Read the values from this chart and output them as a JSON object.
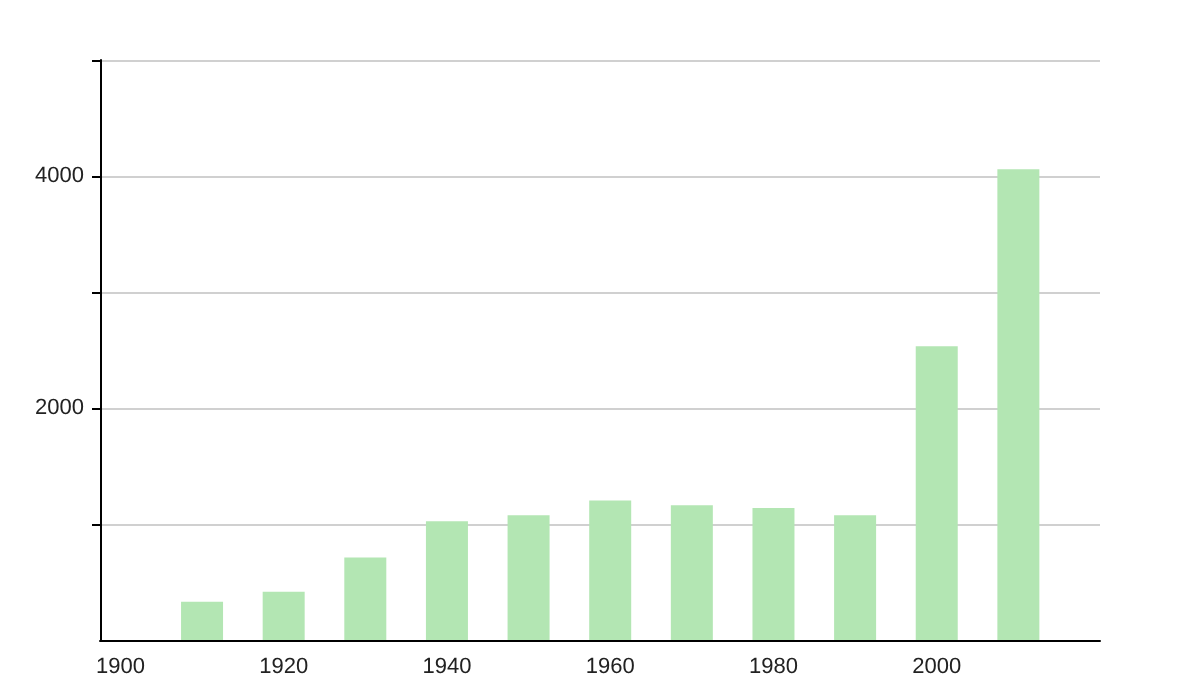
{
  "chart_data": {
    "type": "bar",
    "x": [
      1910,
      1920,
      1930,
      1940,
      1950,
      1960,
      1970,
      1980,
      1990,
      2000,
      2010
    ],
    "values": [
      330,
      416,
      711,
      1023,
      1075,
      1202,
      1162,
      1139,
      1075,
      2532,
      4058
    ],
    "color": "#b3e6b3",
    "xlim": [
      1897.5,
      2020
    ],
    "xticks": [
      1900,
      1920,
      1940,
      1960,
      1980,
      2000
    ],
    "ylim": [
      0,
      5000
    ],
    "yticks": [
      {
        "value": 1000,
        "label": null
      },
      2000,
      {
        "value": 3000,
        "label": null
      },
      4000,
      {
        "value": 5000,
        "label": null
      }
    ],
    "grid": "y"
  }
}
